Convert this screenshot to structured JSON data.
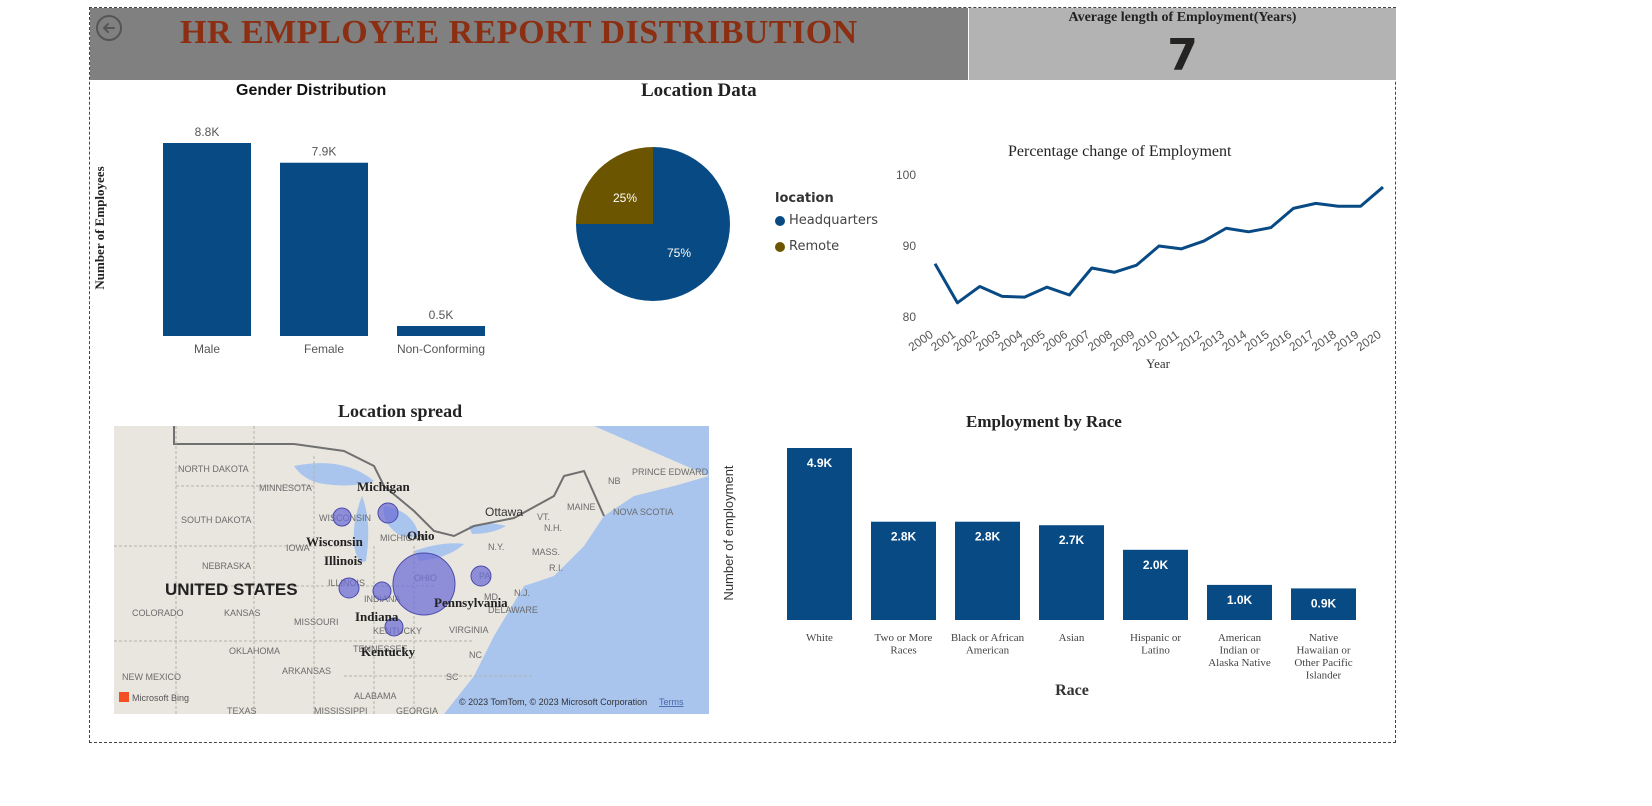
{
  "header": {
    "title": "HR EMPLOYEE REPORT DISTRIBUTION",
    "kpi_label": "Average length of Employment(Years)",
    "kpi_value": "7"
  },
  "colors": {
    "primary": "#084A83",
    "secondary": "#6B5500",
    "title_red": "#8B2E12",
    "header_gray": "#808080",
    "kpi_gray": "#b3b3b3",
    "bubble": "#6f6fd6"
  },
  "icons": {
    "back": "back-arrow-icon"
  },
  "chart_data": [
    {
      "type": "bar",
      "title": "Gender Distribution",
      "ylabel": "Number of Employees",
      "xlabel": "",
      "categories": [
        "Male",
        "Female",
        "Non-Conforming"
      ],
      "values": [
        8800,
        7900,
        500
      ],
      "data_labels": [
        "8.8K",
        "7.9K",
        "0.5K"
      ],
      "ylim": [
        0,
        8800
      ]
    },
    {
      "type": "pie",
      "title": "Location Data",
      "legend_title": "location",
      "labels": [
        "Headquarters",
        "Remote"
      ],
      "values": [
        75,
        25
      ],
      "data_labels": [
        "75%",
        "25%"
      ],
      "legend": "right"
    },
    {
      "type": "line",
      "title": "Percentage change of Employment",
      "xlabel": "Year",
      "ylabel": "",
      "x": [
        "2000",
        "2001",
        "2002",
        "2003",
        "2004",
        "2005",
        "2006",
        "2007",
        "2008",
        "2009",
        "2010",
        "2011",
        "2012",
        "2013",
        "2014",
        "2015",
        "2016",
        "2017",
        "2018",
        "2019",
        "2020"
      ],
      "values": [
        87.5,
        82.0,
        84.3,
        82.9,
        82.8,
        84.2,
        83.1,
        86.9,
        86.3,
        87.3,
        90.0,
        89.6,
        90.7,
        92.5,
        92.0,
        92.6,
        95.3,
        96.0,
        95.6,
        95.6,
        98.3
      ],
      "yticks": [
        80,
        90,
        100
      ],
      "ylim": [
        80,
        100
      ]
    },
    {
      "type": "bar",
      "title": "Employment by Race",
      "xlabel": "Race",
      "ylabel": "Number of employment",
      "categories": [
        "White",
        "Two or More Races",
        "Black or African American",
        "Asian",
        "Hispanic or Latino",
        "American Indian or Alaska Native",
        "Native Hawaiian or Other Pacific Islander"
      ],
      "category_lines": [
        [
          "White"
        ],
        [
          "Two or More",
          "Races"
        ],
        [
          "Black or African",
          "American"
        ],
        [
          "Asian"
        ],
        [
          "Hispanic or",
          "Latino"
        ],
        [
          "American",
          "Indian or",
          "Alaska Native"
        ],
        [
          "Native",
          "Hawaiian or",
          "Other Pacific",
          "Islander"
        ]
      ],
      "values": [
        4900,
        2800,
        2800,
        2700,
        2000,
        1000,
        900
      ],
      "data_labels": [
        "4.9K",
        "2.8K",
        "2.8K",
        "2.7K",
        "2.0K",
        "1.0K",
        "0.9K"
      ],
      "ylim": [
        0,
        4900
      ]
    }
  ],
  "map": {
    "title": "Location spread",
    "country_label": "UNITED STATES",
    "state_labels": [
      "NORTH DAKOTA",
      "MINNESOTA",
      "SOUTH DAKOTA",
      "IOWA",
      "NEBRASKA",
      "KANSAS",
      "COLORADO",
      "MISSOURI",
      "OKLAHOMA",
      "ARKANSAS",
      "NEW MEXICO",
      "TEXAS",
      "MISSISSIPPI",
      "ALABAMA",
      "GEORGIA",
      "WISCONSIN",
      "MICHIGAN",
      "ILLINOIS",
      "INDIANA",
      "OHIO",
      "KENTUCKY",
      "TENNESSEE",
      "VIRGINIA",
      "NC",
      "SC",
      "PA",
      "N.Y.",
      "MD",
      "DELAWARE",
      "N.J.",
      "MASS.",
      "VT.",
      "N.H.",
      "R.I.",
      "MAINE",
      "NB",
      "PRINCE EDWARD ISLAND",
      "NOVA SCOTIA",
      "Ottawa"
    ],
    "bubble_labels": [
      "Michigan",
      "Wisconsin",
      "Ohio",
      "Illinois",
      "Pennsylvania",
      "Indiana",
      "Kentucky"
    ],
    "attribution": "© 2023 TomTom, © 2023 Microsoft Corporation",
    "terms": "Terms",
    "bing": "Microsoft Bing"
  }
}
